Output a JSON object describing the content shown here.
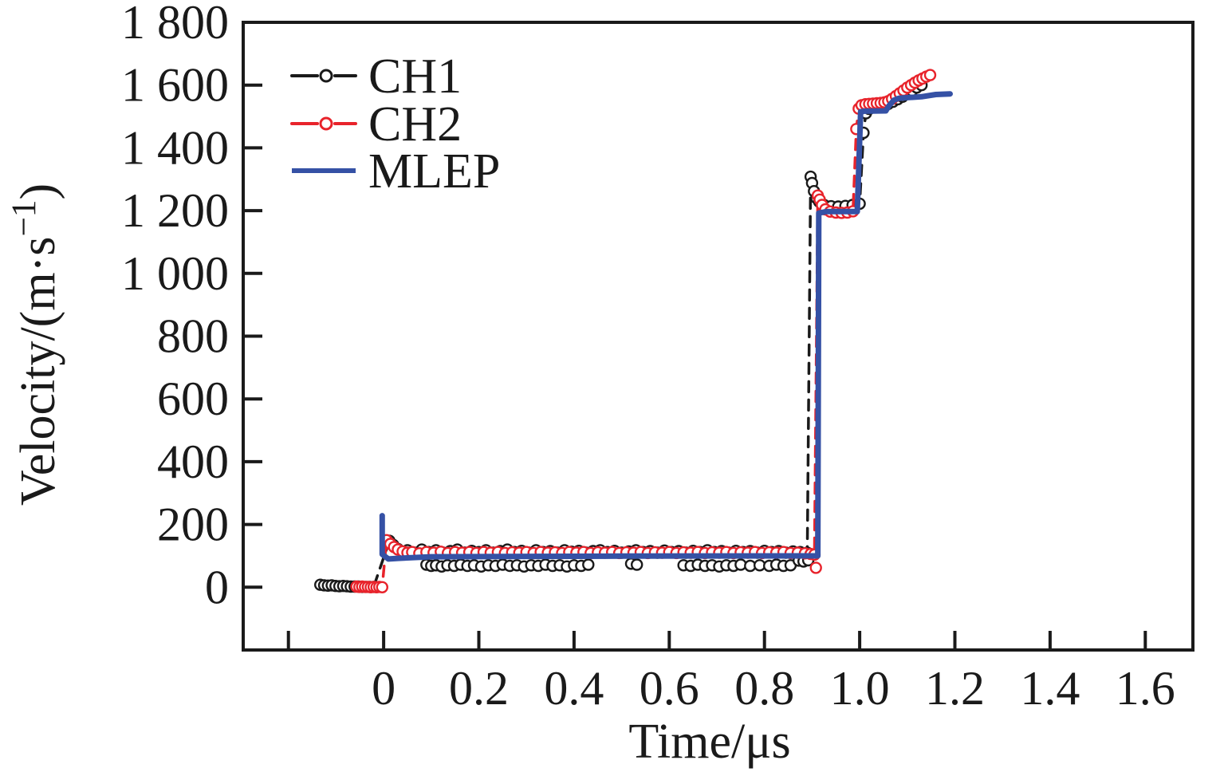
{
  "figure": {
    "background": "#ffffff",
    "axis_color": "#1a1a1a"
  },
  "chart_data": {
    "type": "line",
    "title": "",
    "xlabel": "Time/μs",
    "ylabel": "Velocity/(m·s⁻¹)",
    "ylabel_parts": {
      "pre": "Velocity/(m·s",
      "sup": "−1",
      "post": ")"
    },
    "xlim": [
      -0.295,
      1.7
    ],
    "ylim": [
      -200,
      1800
    ],
    "grid": "off",
    "legend_position": "top-left-inside",
    "x_ticks": {
      "values": [
        -0.2,
        0,
        0.2,
        0.4,
        0.6,
        0.8,
        1.0,
        1.2,
        1.4,
        1.6
      ],
      "labels": [
        "",
        "0",
        "0.2",
        "0.4",
        "0.6",
        "0.8",
        "1.0",
        "1.2",
        "1.4",
        "1.6"
      ]
    },
    "y_ticks": {
      "values": [
        0,
        200,
        400,
        600,
        800,
        1000,
        1200,
        1400,
        1600,
        1800
      ],
      "labels": [
        "0",
        "200",
        "400",
        "600",
        "800",
        "1 000",
        "1 200",
        "1 400",
        "1 600",
        "1 800"
      ]
    },
    "series": [
      {
        "name": "CH1",
        "color": "#1a1a1a",
        "style": "dashed",
        "marker": "open-circle",
        "line": [
          [
            -0.133,
            8
          ],
          [
            -0.125,
            6
          ],
          [
            -0.117,
            5
          ],
          [
            -0.109,
            6
          ],
          [
            -0.101,
            4
          ],
          [
            -0.093,
            3
          ],
          [
            -0.085,
            4
          ],
          [
            -0.077,
            3
          ],
          [
            -0.069,
            2
          ],
          [
            -0.061,
            2
          ],
          [
            -0.053,
            2
          ],
          [
            -0.045,
            1
          ],
          [
            -0.037,
            1
          ],
          [
            -0.029,
            1
          ],
          [
            -0.021,
            1
          ],
          [
            0.012,
            148
          ],
          [
            0.02,
            135
          ],
          [
            0.03,
            122
          ],
          [
            0.04,
            112
          ],
          [
            0.05,
            118
          ],
          [
            0.065,
            110
          ],
          [
            0.08,
            120
          ],
          [
            0.095,
            112
          ],
          [
            0.11,
            118
          ],
          [
            0.125,
            110
          ],
          [
            0.14,
            115
          ],
          [
            0.155,
            120
          ],
          [
            0.17,
            110
          ],
          [
            0.185,
            116
          ],
          [
            0.2,
            112
          ],
          [
            0.215,
            118
          ],
          [
            0.23,
            110
          ],
          [
            0.245,
            115
          ],
          [
            0.26,
            120
          ],
          [
            0.275,
            112
          ],
          [
            0.29,
            116
          ],
          [
            0.305,
            110
          ],
          [
            0.32,
            118
          ],
          [
            0.335,
            112
          ],
          [
            0.35,
            115
          ],
          [
            0.365,
            110
          ],
          [
            0.38,
            118
          ],
          [
            0.395,
            113
          ],
          [
            0.41,
            116
          ],
          [
            0.425,
            110
          ],
          [
            0.44,
            115
          ],
          [
            0.455,
            118
          ],
          [
            0.47,
            112
          ],
          [
            0.485,
            116
          ],
          [
            0.5,
            110
          ],
          [
            0.515,
            114
          ],
          [
            0.53,
            118
          ],
          [
            0.545,
            112
          ],
          [
            0.56,
            115
          ],
          [
            0.575,
            110
          ],
          [
            0.59,
            117
          ],
          [
            0.605,
            112
          ],
          [
            0.62,
            115
          ],
          [
            0.635,
            110
          ],
          [
            0.65,
            116
          ],
          [
            0.665,
            112
          ],
          [
            0.68,
            118
          ],
          [
            0.695,
            112
          ],
          [
            0.71,
            115
          ],
          [
            0.725,
            110
          ],
          [
            0.74,
            116
          ],
          [
            0.755,
            112
          ],
          [
            0.77,
            115
          ],
          [
            0.785,
            110
          ],
          [
            0.8,
            116
          ],
          [
            0.815,
            112
          ],
          [
            0.83,
            115
          ],
          [
            0.845,
            110
          ],
          [
            0.86,
            114
          ],
          [
            0.875,
            112
          ],
          [
            0.89,
            110
          ],
          [
            0.897,
            1308
          ],
          [
            0.9,
            1288
          ],
          [
            0.904,
            1262
          ],
          [
            0.909,
            1240
          ],
          [
            0.915,
            1228
          ],
          [
            0.925,
            1218
          ],
          [
            0.94,
            1214
          ],
          [
            0.955,
            1213
          ],
          [
            0.97,
            1215
          ],
          [
            0.985,
            1218
          ],
          [
            1.0,
            1222
          ],
          [
            1.008,
            1448
          ],
          [
            1.013,
            1510
          ],
          [
            1.02,
            1524
          ],
          [
            1.03,
            1530
          ],
          [
            1.04,
            1534
          ],
          [
            1.05,
            1537
          ],
          [
            1.06,
            1540
          ],
          [
            1.07,
            1547
          ],
          [
            1.08,
            1555
          ],
          [
            1.09,
            1563
          ],
          [
            1.1,
            1572
          ],
          [
            1.11,
            1582
          ],
          [
            1.12,
            1592
          ],
          [
            1.13,
            1600
          ]
        ],
        "scatter": [
          [
            0.09,
            72
          ],
          [
            0.1,
            68
          ],
          [
            0.11,
            70
          ],
          [
            0.122,
            66
          ],
          [
            0.134,
            70
          ],
          [
            0.148,
            68
          ],
          [
            0.162,
            72
          ],
          [
            0.176,
            68
          ],
          [
            0.19,
            70
          ],
          [
            0.205,
            66
          ],
          [
            0.22,
            70
          ],
          [
            0.235,
            68
          ],
          [
            0.25,
            72
          ],
          [
            0.265,
            68
          ],
          [
            0.28,
            70
          ],
          [
            0.295,
            66
          ],
          [
            0.31,
            70
          ],
          [
            0.325,
            68
          ],
          [
            0.34,
            72
          ],
          [
            0.355,
            68
          ],
          [
            0.37,
            70
          ],
          [
            0.385,
            66
          ],
          [
            0.4,
            70
          ],
          [
            0.415,
            68
          ],
          [
            0.43,
            72
          ],
          [
            0.52,
            75
          ],
          [
            0.532,
            72
          ],
          [
            0.63,
            70
          ],
          [
            0.645,
            68
          ],
          [
            0.66,
            72
          ],
          [
            0.675,
            68
          ],
          [
            0.69,
            70
          ],
          [
            0.705,
            66
          ],
          [
            0.72,
            70
          ],
          [
            0.735,
            68
          ],
          [
            0.75,
            72
          ],
          [
            0.77,
            68
          ],
          [
            0.79,
            70
          ],
          [
            0.81,
            68
          ],
          [
            0.825,
            72
          ],
          [
            0.84,
            68
          ],
          [
            0.855,
            70
          ],
          [
            0.872,
            85
          ],
          [
            0.882,
            82
          ],
          [
            0.892,
            86
          ]
        ]
      },
      {
        "name": "CH2",
        "color": "#e8232b",
        "style": "dashed",
        "marker": "open-circle",
        "line": [
          [
            -0.057,
            2
          ],
          [
            -0.051,
            1
          ],
          [
            -0.045,
            2
          ],
          [
            -0.039,
            1
          ],
          [
            -0.033,
            1
          ],
          [
            -0.027,
            0
          ],
          [
            -0.021,
            1
          ],
          [
            -0.015,
            0
          ],
          [
            -0.009,
            1
          ],
          [
            -0.003,
            0
          ],
          [
            0.006,
            150
          ],
          [
            0.014,
            138
          ],
          [
            0.022,
            128
          ],
          [
            0.03,
            120
          ],
          [
            0.04,
            114
          ],
          [
            0.05,
            110
          ],
          [
            0.06,
            112
          ],
          [
            0.075,
            108
          ],
          [
            0.09,
            112
          ],
          [
            0.105,
            110
          ],
          [
            0.12,
            113
          ],
          [
            0.135,
            109
          ],
          [
            0.15,
            112
          ],
          [
            0.165,
            110
          ],
          [
            0.18,
            112
          ],
          [
            0.195,
            109
          ],
          [
            0.21,
            112
          ],
          [
            0.225,
            110
          ],
          [
            0.24,
            112
          ],
          [
            0.255,
            109
          ],
          [
            0.27,
            111
          ],
          [
            0.285,
            110
          ],
          [
            0.3,
            112
          ],
          [
            0.315,
            109
          ],
          [
            0.33,
            112
          ],
          [
            0.345,
            110
          ],
          [
            0.36,
            111
          ],
          [
            0.375,
            109
          ],
          [
            0.39,
            112
          ],
          [
            0.405,
            110
          ],
          [
            0.42,
            112
          ],
          [
            0.435,
            109
          ],
          [
            0.45,
            111
          ],
          [
            0.465,
            110
          ],
          [
            0.48,
            112
          ],
          [
            0.495,
            109
          ],
          [
            0.51,
            111
          ],
          [
            0.525,
            110
          ],
          [
            0.54,
            112
          ],
          [
            0.555,
            109
          ],
          [
            0.57,
            111
          ],
          [
            0.585,
            110
          ],
          [
            0.6,
            112
          ],
          [
            0.615,
            109
          ],
          [
            0.63,
            111
          ],
          [
            0.645,
            110
          ],
          [
            0.66,
            112
          ],
          [
            0.675,
            109
          ],
          [
            0.69,
            111
          ],
          [
            0.705,
            110
          ],
          [
            0.72,
            112
          ],
          [
            0.735,
            109
          ],
          [
            0.75,
            111
          ],
          [
            0.765,
            110
          ],
          [
            0.78,
            112
          ],
          [
            0.795,
            109
          ],
          [
            0.81,
            111
          ],
          [
            0.825,
            110
          ],
          [
            0.84,
            112
          ],
          [
            0.855,
            109
          ],
          [
            0.87,
            110
          ],
          [
            0.885,
            108
          ],
          [
            0.897,
            106
          ],
          [
            0.905,
            104
          ],
          [
            0.912,
            1248
          ],
          [
            0.916,
            1235
          ],
          [
            0.921,
            1218
          ],
          [
            0.928,
            1204
          ],
          [
            0.938,
            1197
          ],
          [
            0.95,
            1194
          ],
          [
            0.962,
            1193
          ],
          [
            0.974,
            1194
          ],
          [
            0.986,
            1198
          ],
          [
            0.993,
            1460
          ],
          [
            0.998,
            1525
          ],
          [
            1.004,
            1536
          ],
          [
            1.012,
            1539
          ],
          [
            1.02,
            1540
          ],
          [
            1.028,
            1541
          ],
          [
            1.036,
            1542
          ],
          [
            1.044,
            1543
          ],
          [
            1.052,
            1545
          ],
          [
            1.06,
            1549
          ],
          [
            1.068,
            1556
          ],
          [
            1.076,
            1565
          ],
          [
            1.084,
            1574
          ],
          [
            1.092,
            1583
          ],
          [
            1.1,
            1592
          ],
          [
            1.108,
            1600
          ],
          [
            1.116,
            1608
          ],
          [
            1.124,
            1615
          ],
          [
            1.132,
            1621
          ],
          [
            1.14,
            1627
          ],
          [
            1.148,
            1632
          ]
        ],
        "scatter": [
          [
            0.908,
            62
          ]
        ]
      },
      {
        "name": "MLEP",
        "color": "#3551a5",
        "style": "solid",
        "marker": "none",
        "line": [
          [
            -0.003,
            228
          ],
          [
            -0.003,
            105
          ],
          [
            0.01,
            90
          ],
          [
            0.03,
            92
          ],
          [
            0.1,
            97
          ],
          [
            0.5,
            99
          ],
          [
            0.88,
            100
          ],
          [
            0.905,
            100
          ],
          [
            0.912,
            100
          ],
          [
            0.914,
            1192
          ],
          [
            0.93,
            1197
          ],
          [
            0.995,
            1197
          ],
          [
            1.002,
            1515
          ],
          [
            1.01,
            1517
          ],
          [
            1.055,
            1518
          ],
          [
            1.062,
            1535
          ],
          [
            1.072,
            1552
          ],
          [
            1.082,
            1558
          ],
          [
            1.1,
            1560
          ],
          [
            1.13,
            1563
          ],
          [
            1.16,
            1570
          ],
          [
            1.19,
            1572
          ]
        ],
        "scatter": []
      }
    ]
  }
}
